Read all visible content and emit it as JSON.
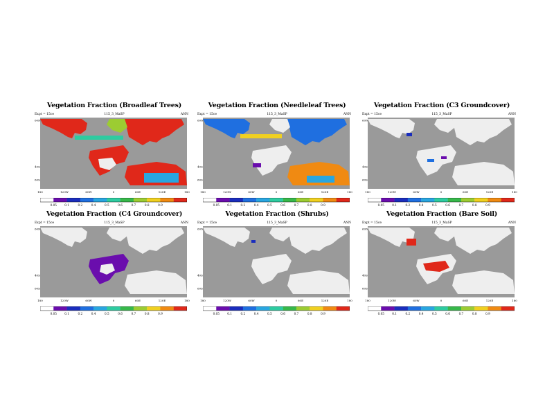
{
  "panels": [
    {
      "title": "Vegetation Fraction (Broadleaf Trees)",
      "left": "Expt = 15ce",
      "center": "115_3_MaSP",
      "right": "ANN",
      "lon_labels": [
        "180",
        "120W",
        "60W",
        "0",
        "60E",
        "120E",
        "180"
      ],
      "lat_labels": [
        "60N",
        "40S",
        "60S"
      ],
      "cbar_labels": [
        "0.05",
        "0.1",
        "0.2",
        "0.4",
        "0.5",
        "0.6",
        "0.7",
        "0.8",
        "0.9"
      ]
    },
    {
      "title": "Vegetation Fraction (Needleleaf Trees)",
      "left": "Expt = 15ce",
      "center": "115_3_MaSP",
      "right": "ANN",
      "lon_labels": [
        "180",
        "120W",
        "60W",
        "0",
        "60E",
        "120E",
        "180"
      ],
      "lat_labels": [
        "60N",
        "40S",
        "60S"
      ],
      "cbar_labels": [
        "0.05",
        "0.1",
        "0.2",
        "0.4",
        "0.5",
        "0.6",
        "0.7",
        "0.8",
        "0.9"
      ]
    },
    {
      "title": "Vegetation Fraction (C3 Groundcover)",
      "left": "Expt = 15ce",
      "center": "115_3_MaSP",
      "right": "ANN",
      "lon_labels": [
        "180",
        "120W",
        "60W",
        "0",
        "60E",
        "120E",
        "180"
      ],
      "lat_labels": [
        "60N",
        "40S",
        "60S"
      ],
      "cbar_labels": [
        "0.05",
        "0.1",
        "0.2",
        "0.4",
        "0.5",
        "0.6",
        "0.7",
        "0.8",
        "0.9"
      ]
    },
    {
      "title": "Vegetation Fraction (C4 Groundcover)",
      "left": "Expt = 15ce",
      "center": "115_3_MaSP",
      "right": "ANN",
      "lon_labels": [
        "180",
        "120W",
        "60W",
        "0",
        "60E",
        "120E",
        "180"
      ],
      "lat_labels": [
        "60N",
        "40S",
        "60S"
      ],
      "cbar_labels": [
        "0.05",
        "0.1",
        "0.2",
        "0.4",
        "0.5",
        "0.6",
        "0.7",
        "0.8",
        "0.9"
      ]
    },
    {
      "title": "Vegetation Fraction (Shrubs)",
      "left": "Expt = 15ce",
      "center": "115_3_MaSP",
      "right": "ANN",
      "lon_labels": [
        "180",
        "120W",
        "60W",
        "0",
        "60E",
        "120E",
        "180"
      ],
      "lat_labels": [
        "60N",
        "40S",
        "60S"
      ],
      "cbar_labels": [
        "0.05",
        "0.1",
        "0.2",
        "0.4",
        "0.5",
        "0.6",
        "0.7",
        "0.8",
        "0.9"
      ]
    },
    {
      "title": "Vegetation Fraction (Bare Soil)",
      "left": "Expt = 15ce",
      "center": "115_3_MaSP",
      "right": "ANN",
      "lon_labels": [
        "180",
        "120W",
        "60W",
        "0",
        "60E",
        "120E",
        "180"
      ],
      "lat_labels": [
        "60N",
        "40S",
        "60S"
      ],
      "cbar_labels": [
        "0.05",
        "0.1",
        "0.2",
        "0.4",
        "0.5",
        "0.6",
        "0.7",
        "0.8",
        "0.9"
      ]
    }
  ],
  "colors": {
    "ocean": "#9a9a9a",
    "land": "#eeeeee",
    "scale": [
      "#ffffff",
      "#6a0dad",
      "#1a2dbd",
      "#1f6fe0",
      "#29a6e0",
      "#2ecba0",
      "#37b84a",
      "#9ccc32",
      "#f0d020",
      "#f08a12",
      "#e0281a"
    ]
  }
}
